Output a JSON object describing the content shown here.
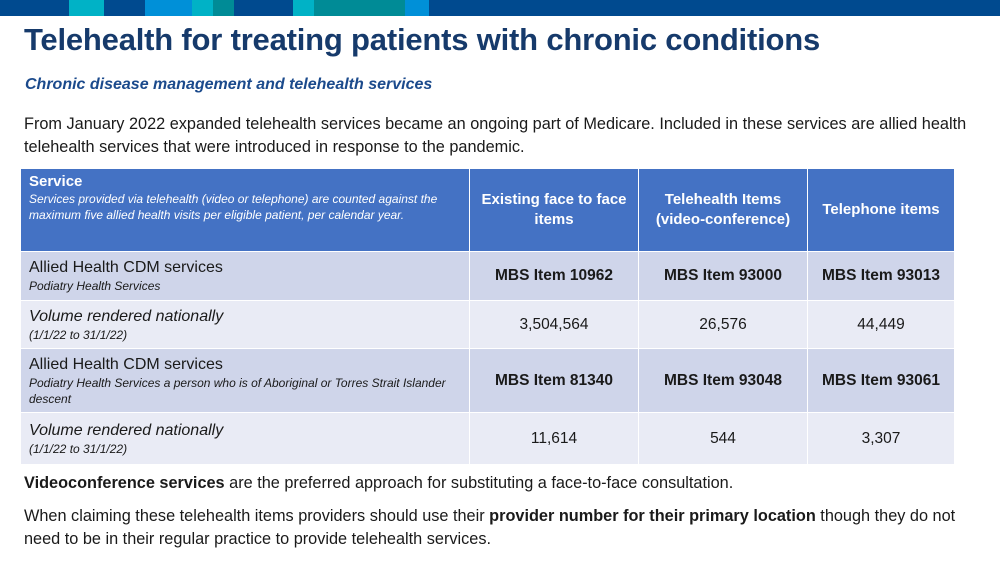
{
  "theme": {
    "topbar_base": "#004a8f",
    "topbar_cyan": "#00b2c6",
    "topbar_blue": "#0090d8",
    "topbar_teal": "#008b96",
    "title_color": "#163a6b",
    "subtitle_color": "#1b4a8c",
    "header_bg": "#4472c4",
    "row_dark": "#cfd5ea",
    "row_light": "#e9ebf5"
  },
  "title": "Telehealth for treating patients with chronic conditions",
  "subtitle": "Chronic disease management  and telehealth services",
  "intro": "From January 2022 expanded telehealth services became an ongoing part of Medicare. Included in these services are allied health telehealth services that were introduced in response to the pandemic.",
  "table": {
    "header": {
      "service_title": "Service",
      "service_note": "Services provided via telehealth (video or telephone) are counted against the maximum five allied health visits per eligible patient, per calendar year.",
      "col1": "Existing face to face items",
      "col2": "Telehealth Items (video-conference)",
      "col3": "Telephone items"
    },
    "rows": [
      {
        "label": "Allied Health CDM services",
        "note": "Podiatry Health Services",
        "c1": "MBS Item 10962",
        "c2": "MBS Item 93000",
        "c3": "MBS Item 93013"
      },
      {
        "label": "Volume rendered  nationally",
        "note": "(1/1/22 to 31/1/22)",
        "c1": "3,504,564",
        "c2": "26,576",
        "c3": "44,449"
      },
      {
        "label": "Allied Health CDM services",
        "note": "Podiatry Health Services a person who is of Aboriginal or Torres Strait Islander descent",
        "c1": "MBS Item 81340",
        "c2": "MBS Item 93048",
        "c3": "MBS Item 93061"
      },
      {
        "label": "Volume rendered  nationally",
        "note": "(1/1/22 to 31/1/22)",
        "c1": "11,614",
        "c2": "544",
        "c3": "3,307"
      }
    ]
  },
  "para1": {
    "bold": "Videoconference services",
    "rest": " are the preferred approach for substituting a face-to-face consultation."
  },
  "para2": {
    "before": "When claiming these telehealth items providers should use their ",
    "bold": "provider number for their primary location",
    "after": " though they do not need to be in their regular practice to provide telehealth services."
  }
}
